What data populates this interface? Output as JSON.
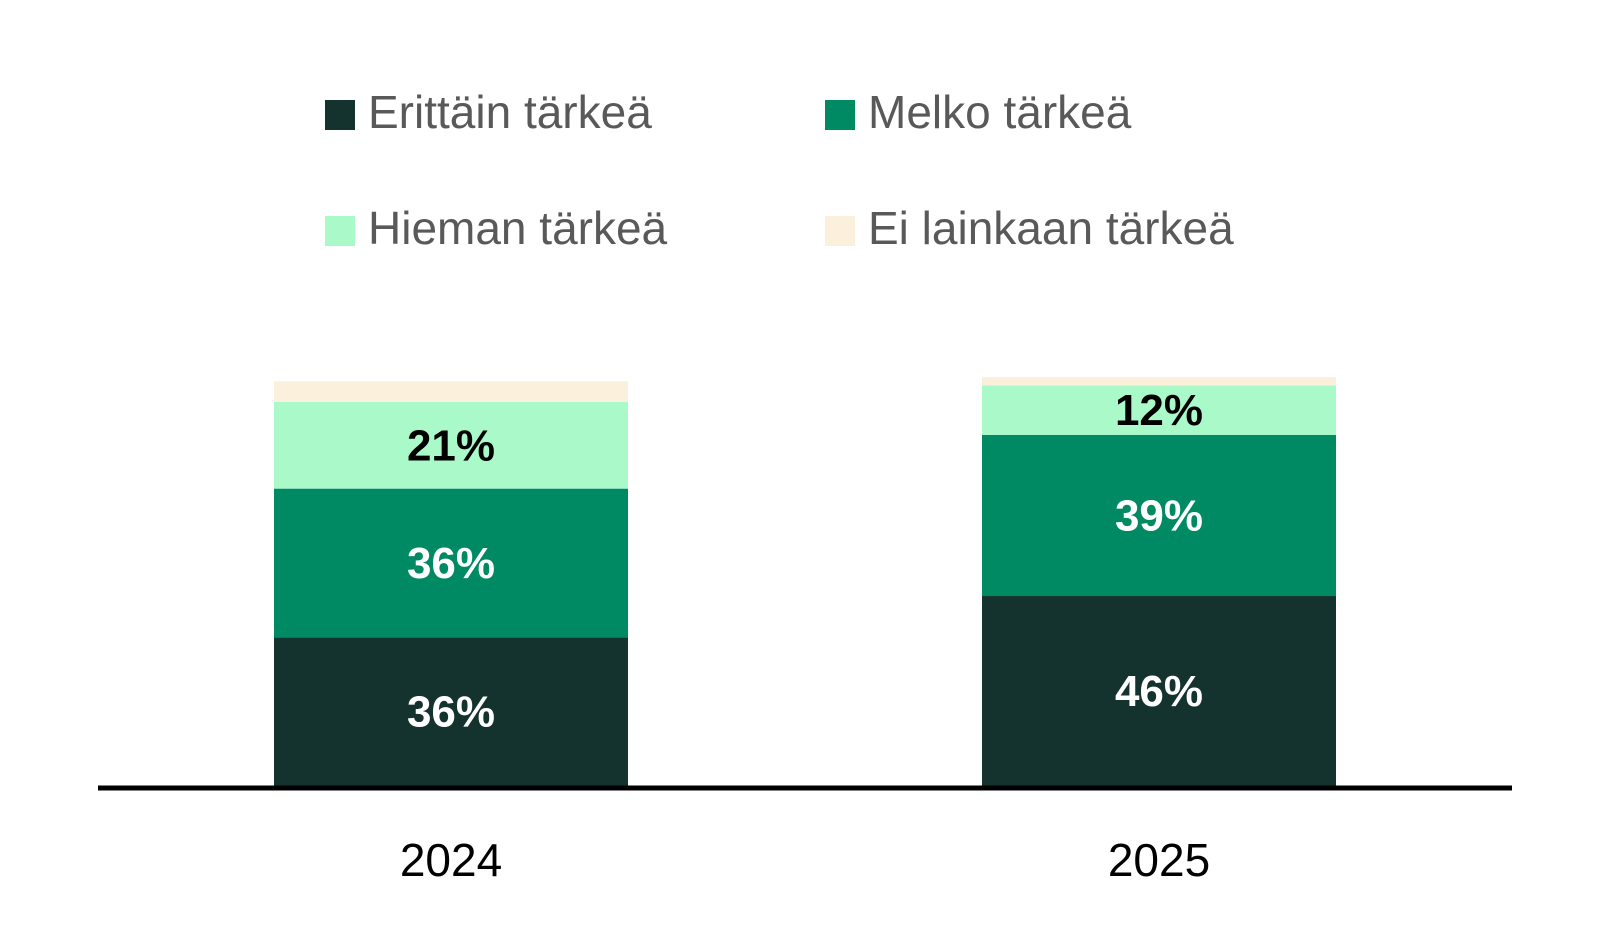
{
  "chart_data": {
    "type": "bar",
    "stacked": true,
    "categories": [
      "2024",
      "2025"
    ],
    "series": [
      {
        "name": "Erittäin tärkeä",
        "values": [
          36,
          46
        ],
        "labels": [
          "36%",
          "46%"
        ],
        "color": "#15332E",
        "label_color": "#FFFFFF"
      },
      {
        "name": "Melko tärkeä",
        "values": [
          36,
          39
        ],
        "labels": [
          "36%",
          "39%"
        ],
        "color": "#008A64",
        "label_color": "#FFFFFF"
      },
      {
        "name": "Hieman tärkeä",
        "values": [
          21,
          12
        ],
        "labels": [
          "21%",
          "12%"
        ],
        "color": "#AAF9C9",
        "label_color": "#000000"
      },
      {
        "name": "Ei lainkaan tärkeä",
        "values": [
          5,
          2
        ],
        "labels": [
          "",
          ""
        ],
        "color": "#FBF0DC",
        "label_color": "#000000"
      }
    ],
    "ylim": [
      0,
      100
    ],
    "grid": false,
    "legend_position": "top",
    "title": "",
    "xlabel": "",
    "ylabel": ""
  }
}
